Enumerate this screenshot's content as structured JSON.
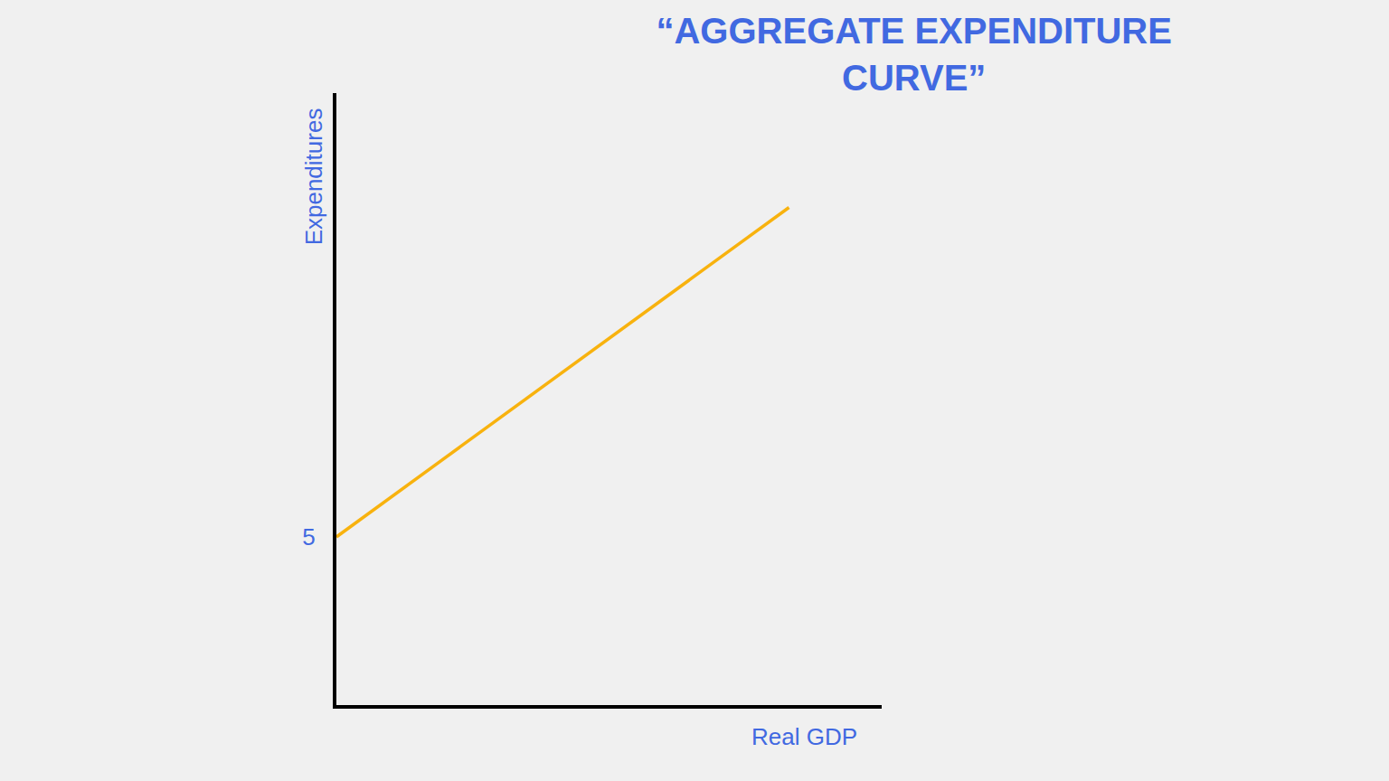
{
  "chart_data": {
    "type": "line",
    "title": "“AGGREGATE EXPENDITURE CURVE”",
    "x_label": "Real GDP",
    "y_label": "Expenditures",
    "x": [
      0,
      8.3
    ],
    "values": [
      5,
      14.8
    ],
    "color": "#f8b20e",
    "xlim": [
      0,
      10
    ],
    "xticks": [],
    "ylim": [
      0,
      18.2
    ],
    "yticks": [
      5
    ],
    "grid": false,
    "tick_labels": "y"
  }
}
